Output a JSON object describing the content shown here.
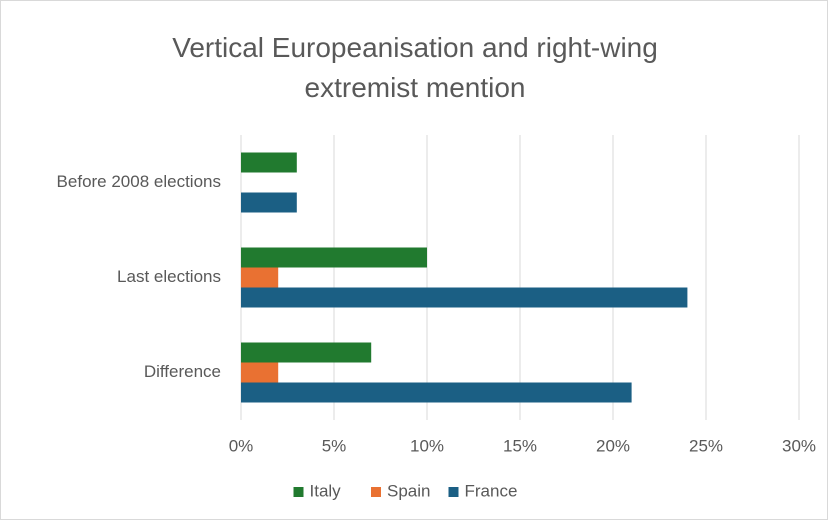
{
  "chart_data": {
    "type": "hbar",
    "title": "Vertical Europeanisation and right-wing extremist mention",
    "categories": [
      "Before 2008 elections",
      "Last elections",
      "Difference"
    ],
    "series": [
      {
        "name": "Italy",
        "color": "#217a2f",
        "values": [
          3,
          10,
          7
        ]
      },
      {
        "name": "Spain",
        "color": "#e97132",
        "values": [
          0,
          2,
          2
        ]
      },
      {
        "name": "France",
        "color": "#1b5f84",
        "values": [
          3,
          24,
          21
        ]
      }
    ],
    "xlim": [
      0,
      30
    ],
    "xticks": [
      {
        "value": 0,
        "label": "0%"
      },
      {
        "value": 5,
        "label": "5%"
      },
      {
        "value": 10,
        "label": "10%"
      },
      {
        "value": 15,
        "label": "15%"
      },
      {
        "value": 20,
        "label": "20%"
      },
      {
        "value": 25,
        "label": "25%"
      },
      {
        "value": 30,
        "label": "30%"
      }
    ],
    "grid": true,
    "legend": "bottom"
  }
}
